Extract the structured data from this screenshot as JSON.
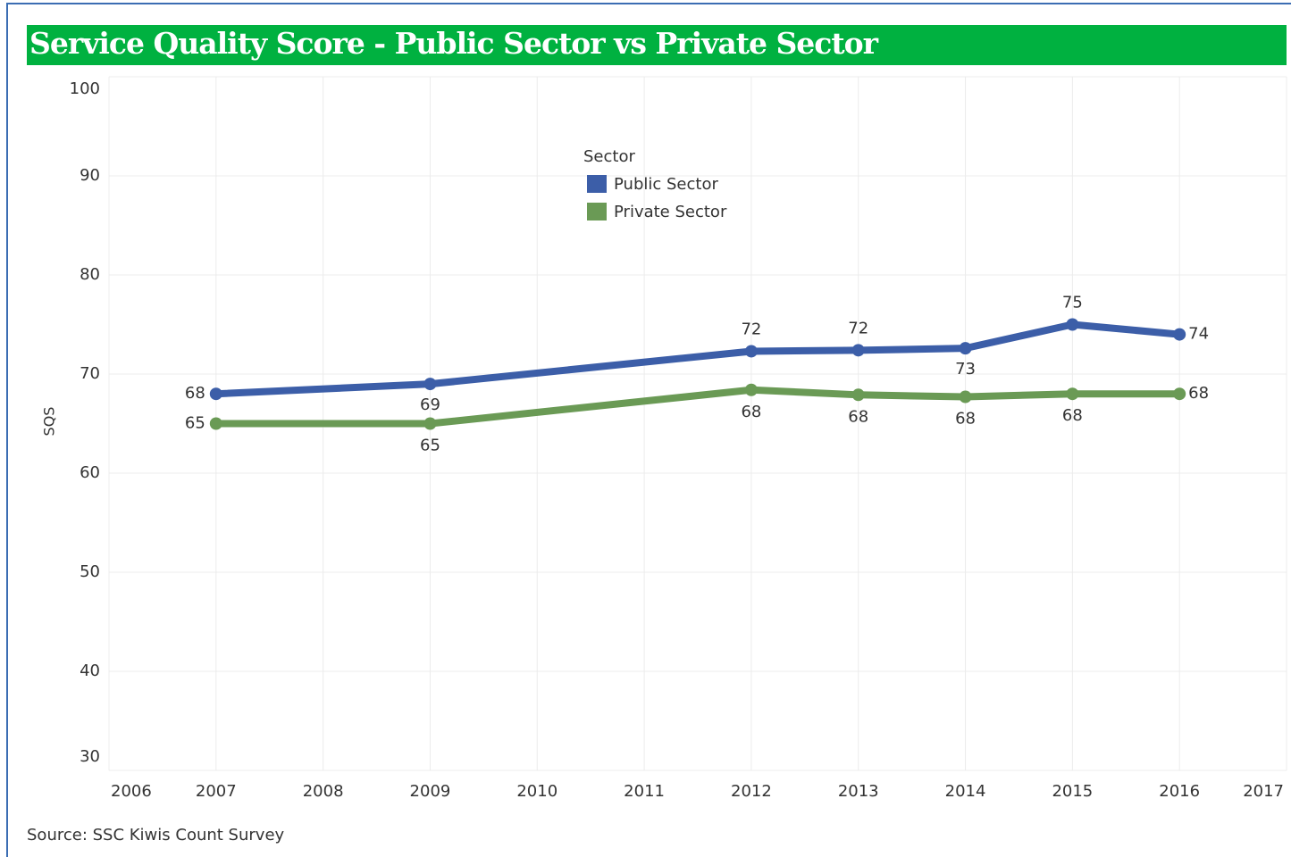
{
  "chart_data": {
    "type": "line",
    "title": "Service Quality Score - Public Sector vs Private Sector",
    "y_label": "SQS",
    "source": "Source:  SSC Kiwis Count Survey",
    "legend_title": "Sector",
    "x": [
      2007,
      2009,
      2012,
      2013,
      2014,
      2015,
      2016
    ],
    "series": [
      {
        "name": "Public Sector",
        "color": "#3c5ea8",
        "values": [
          68.0,
          69.0,
          72.3,
          72.4,
          72.6,
          75.0,
          74.0
        ],
        "value_labels": [
          "68",
          "69",
          "72",
          "72",
          "73",
          "75",
          "74"
        ]
      },
      {
        "name": "Private Sector",
        "color": "#6a9a55",
        "values": [
          65.0,
          65.0,
          68.4,
          67.9,
          67.7,
          68.0,
          68.0
        ],
        "value_labels": [
          "65",
          "65",
          "68",
          "68",
          "68",
          "68",
          "68"
        ]
      }
    ],
    "xlim": [
      2006,
      2017
    ],
    "xticks": [
      2006,
      2007,
      2008,
      2009,
      2010,
      2011,
      2012,
      2013,
      2014,
      2015,
      2016,
      2017
    ],
    "ylim": [
      30,
      100
    ],
    "yticks": [
      30,
      40,
      50,
      60,
      70,
      80,
      90,
      100
    ],
    "grid": true
  }
}
